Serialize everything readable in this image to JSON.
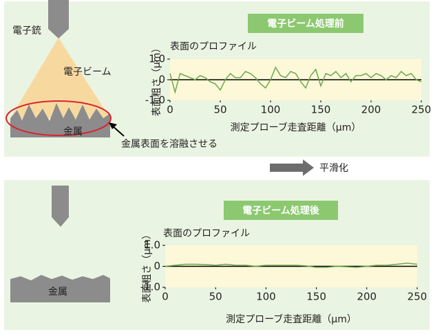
{
  "diagram": {
    "gun_label": "電子銃",
    "beam_label": "電子ビーム",
    "metal_label_top": "金属",
    "melt_label": "金属表面を溶融させる",
    "arrow_label": "平滑化",
    "metal_label_bottom": "金属"
  },
  "chart_data": [
    {
      "type": "line",
      "title": "電子ビーム処理前",
      "subtitle": "表面のプロファイル",
      "y_label": "表面粗さ（μm）",
      "x_label": "測定プローブ走査距離（μm）",
      "xlim": [
        0,
        250
      ],
      "xticks": [
        0,
        50,
        100,
        150,
        200,
        250
      ],
      "ylim": [
        -1,
        1
      ],
      "yticks": [
        {
          "value": 1,
          "label": "1.0"
        },
        0,
        {
          "value": -1,
          "label": "-1.0"
        }
      ],
      "x": [
        0,
        5,
        10,
        15,
        20,
        25,
        30,
        35,
        40,
        45,
        50,
        55,
        60,
        65,
        70,
        75,
        80,
        85,
        90,
        95,
        100,
        105,
        110,
        115,
        120,
        125,
        130,
        135,
        140,
        145,
        150,
        155,
        160,
        165,
        170,
        175,
        180,
        185,
        190,
        195,
        200,
        205,
        210,
        215,
        220,
        225,
        230,
        235,
        240,
        245,
        250
      ],
      "series": [
        {
          "color": "#6aa84f",
          "values": [
            0.3,
            -0.6,
            0.3,
            0.2,
            0.1,
            0.0,
            0.2,
            0.1,
            -0.1,
            -0.2,
            -0.5,
            0.0,
            0.3,
            0.1,
            0.1,
            0.4,
            0.3,
            0.1,
            -0.2,
            -0.4,
            0.0,
            0.6,
            0.2,
            0.1,
            0.4,
            0.3,
            -0.1,
            -0.4,
            0.2,
            0.5,
            -0.3,
            0.3,
            0.2,
            0.4,
            0.1,
            0.3,
            -0.1,
            0.2,
            0.2,
            0.3,
            0.1,
            0.3,
            0.2,
            0.0,
            0.2,
            0.1,
            0.4,
            0.2,
            0.3,
            0.0,
            -0.1
          ]
        }
      ]
    },
    {
      "type": "line",
      "title": "電子ビーム処理後",
      "subtitle": "表面のプロファイル",
      "y_label": "表面粗さ（μm）",
      "x_label": "測定プローブ走査距離（μm）",
      "xlim": [
        0,
        250
      ],
      "xticks": [
        0,
        50,
        100,
        150,
        200,
        250
      ],
      "ylim": [
        -1,
        1
      ],
      "yticks": [
        {
          "value": 1,
          "label": "1.0"
        },
        0,
        {
          "value": -1,
          "label": "-1.0"
        }
      ],
      "x": [
        0,
        10,
        20,
        30,
        40,
        50,
        60,
        70,
        80,
        90,
        100,
        110,
        120,
        130,
        140,
        150,
        160,
        170,
        180,
        190,
        200,
        210,
        220,
        230,
        240,
        250
      ],
      "series": [
        {
          "color": "#6aa84f",
          "values": [
            0,
            0.05,
            0.1,
            0.1,
            0.08,
            0.05,
            0.1,
            0.05,
            0.05,
            0.0,
            0.05,
            0.05,
            0.05,
            0.05,
            0.02,
            -0.05,
            -0.05,
            0.0,
            -0.02,
            -0.05,
            0.0,
            0.05,
            0.05,
            0.1,
            0.15,
            0.1
          ]
        }
      ]
    }
  ]
}
